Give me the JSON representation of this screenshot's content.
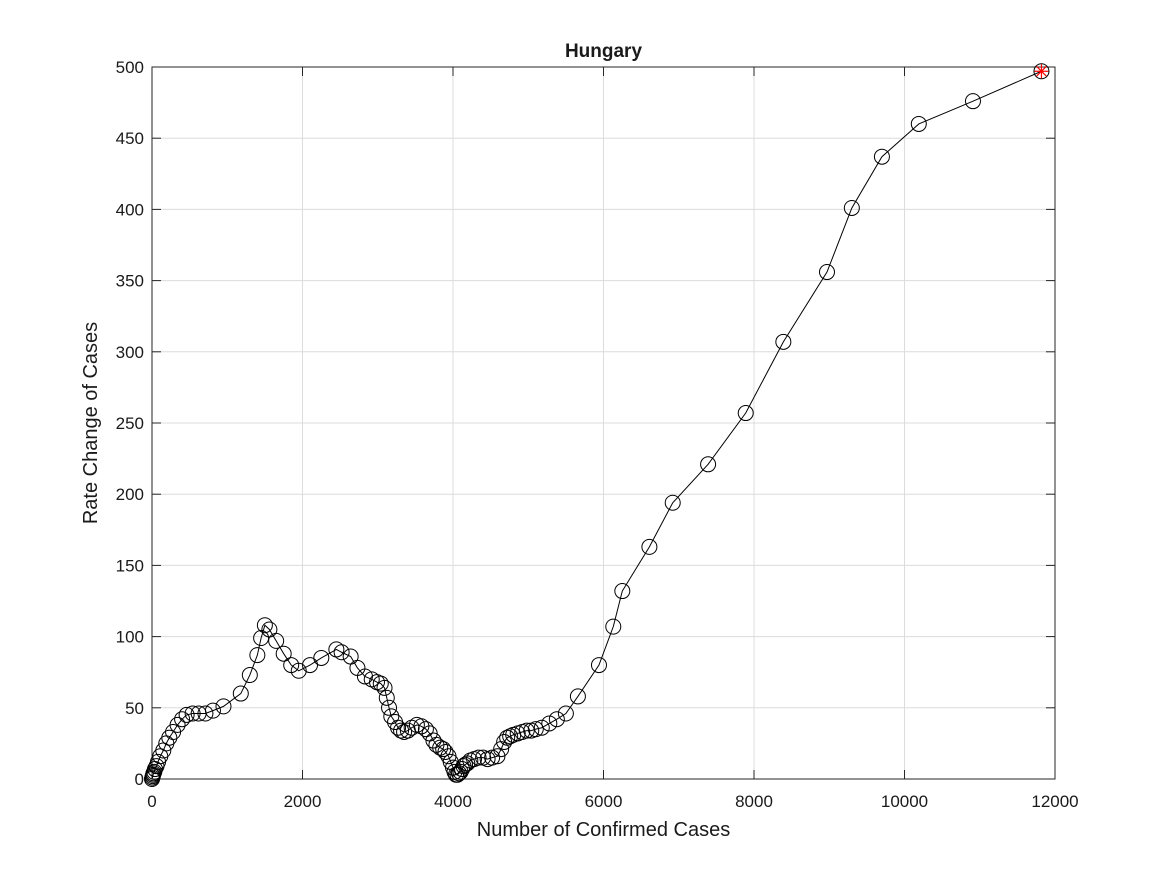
{
  "chart_data": {
    "type": "line",
    "title": "Hungary",
    "xlabel": "Number of Confirmed Cases",
    "ylabel": "Rate Change of Cases",
    "xlim": [
      0,
      12000
    ],
    "ylim": [
      0,
      500
    ],
    "xticks": [
      0,
      2000,
      4000,
      6000,
      8000,
      10000,
      12000
    ],
    "yticks": [
      0,
      50,
      100,
      150,
      200,
      250,
      300,
      350,
      400,
      450,
      500
    ],
    "grid": true,
    "colors": {
      "line": "#000000",
      "marker": "#000000",
      "last_marker": "#ff0000",
      "grid": "#dcdcdc"
    },
    "marker": "circle",
    "last_point_marker": "asterisk",
    "series": [
      {
        "x": [
          0,
          5,
          10,
          15,
          20,
          30,
          40,
          60,
          80,
          110,
          150,
          190,
          230,
          280,
          340,
          400,
          460,
          540,
          620,
          710,
          810,
          950,
          1180,
          1300,
          1400,
          1450,
          1500,
          1560,
          1650,
          1750,
          1850,
          1950,
          2100,
          2250,
          2450,
          2520,
          2640,
          2730,
          2830,
          2920,
          2990,
          3040,
          3090,
          3120,
          3150,
          3180,
          3230,
          3270,
          3310,
          3350,
          3400,
          3450,
          3520,
          3580,
          3640,
          3690,
          3740,
          3780,
          3830,
          3870,
          3900,
          3940,
          3970,
          4000,
          4020,
          4040,
          4060,
          4080,
          4100,
          4120,
          4140,
          4160,
          4190,
          4230,
          4280,
          4340,
          4400,
          4460,
          4520,
          4590,
          4640,
          4680,
          4720,
          4760,
          4800,
          4860,
          4920,
          4980,
          5040,
          5100,
          5180,
          5280,
          5380,
          5500,
          5660,
          5940,
          6130,
          6250,
          6610,
          6920,
          7390,
          7890,
          8390,
          8970,
          9300,
          9700,
          10190,
          10910,
          11820
        ],
        "y": [
          0,
          1,
          2,
          3,
          4,
          5,
          7,
          9,
          12,
          16,
          20,
          25,
          29,
          33,
          38,
          42,
          45,
          46,
          46,
          46,
          48,
          51,
          60,
          73,
          87,
          99,
          108,
          105,
          97,
          88,
          80,
          76,
          80,
          85,
          91,
          89,
          86,
          78,
          72,
          70,
          68,
          67,
          64,
          57,
          50,
          44,
          40,
          36,
          34,
          33,
          34,
          36,
          38,
          37,
          35,
          32,
          27,
          24,
          22,
          21,
          19,
          16,
          12,
          8,
          5,
          3,
          3,
          4,
          5,
          7,
          9,
          10,
          11,
          13,
          14,
          15,
          15,
          14,
          15,
          16,
          21,
          26,
          29,
          30,
          31,
          32,
          33,
          34,
          34,
          35,
          36,
          39,
          42,
          46,
          58,
          80,
          107,
          132,
          163,
          194,
          221,
          257,
          307,
          356,
          401,
          437,
          460,
          476,
          497
        ]
      }
    ]
  }
}
